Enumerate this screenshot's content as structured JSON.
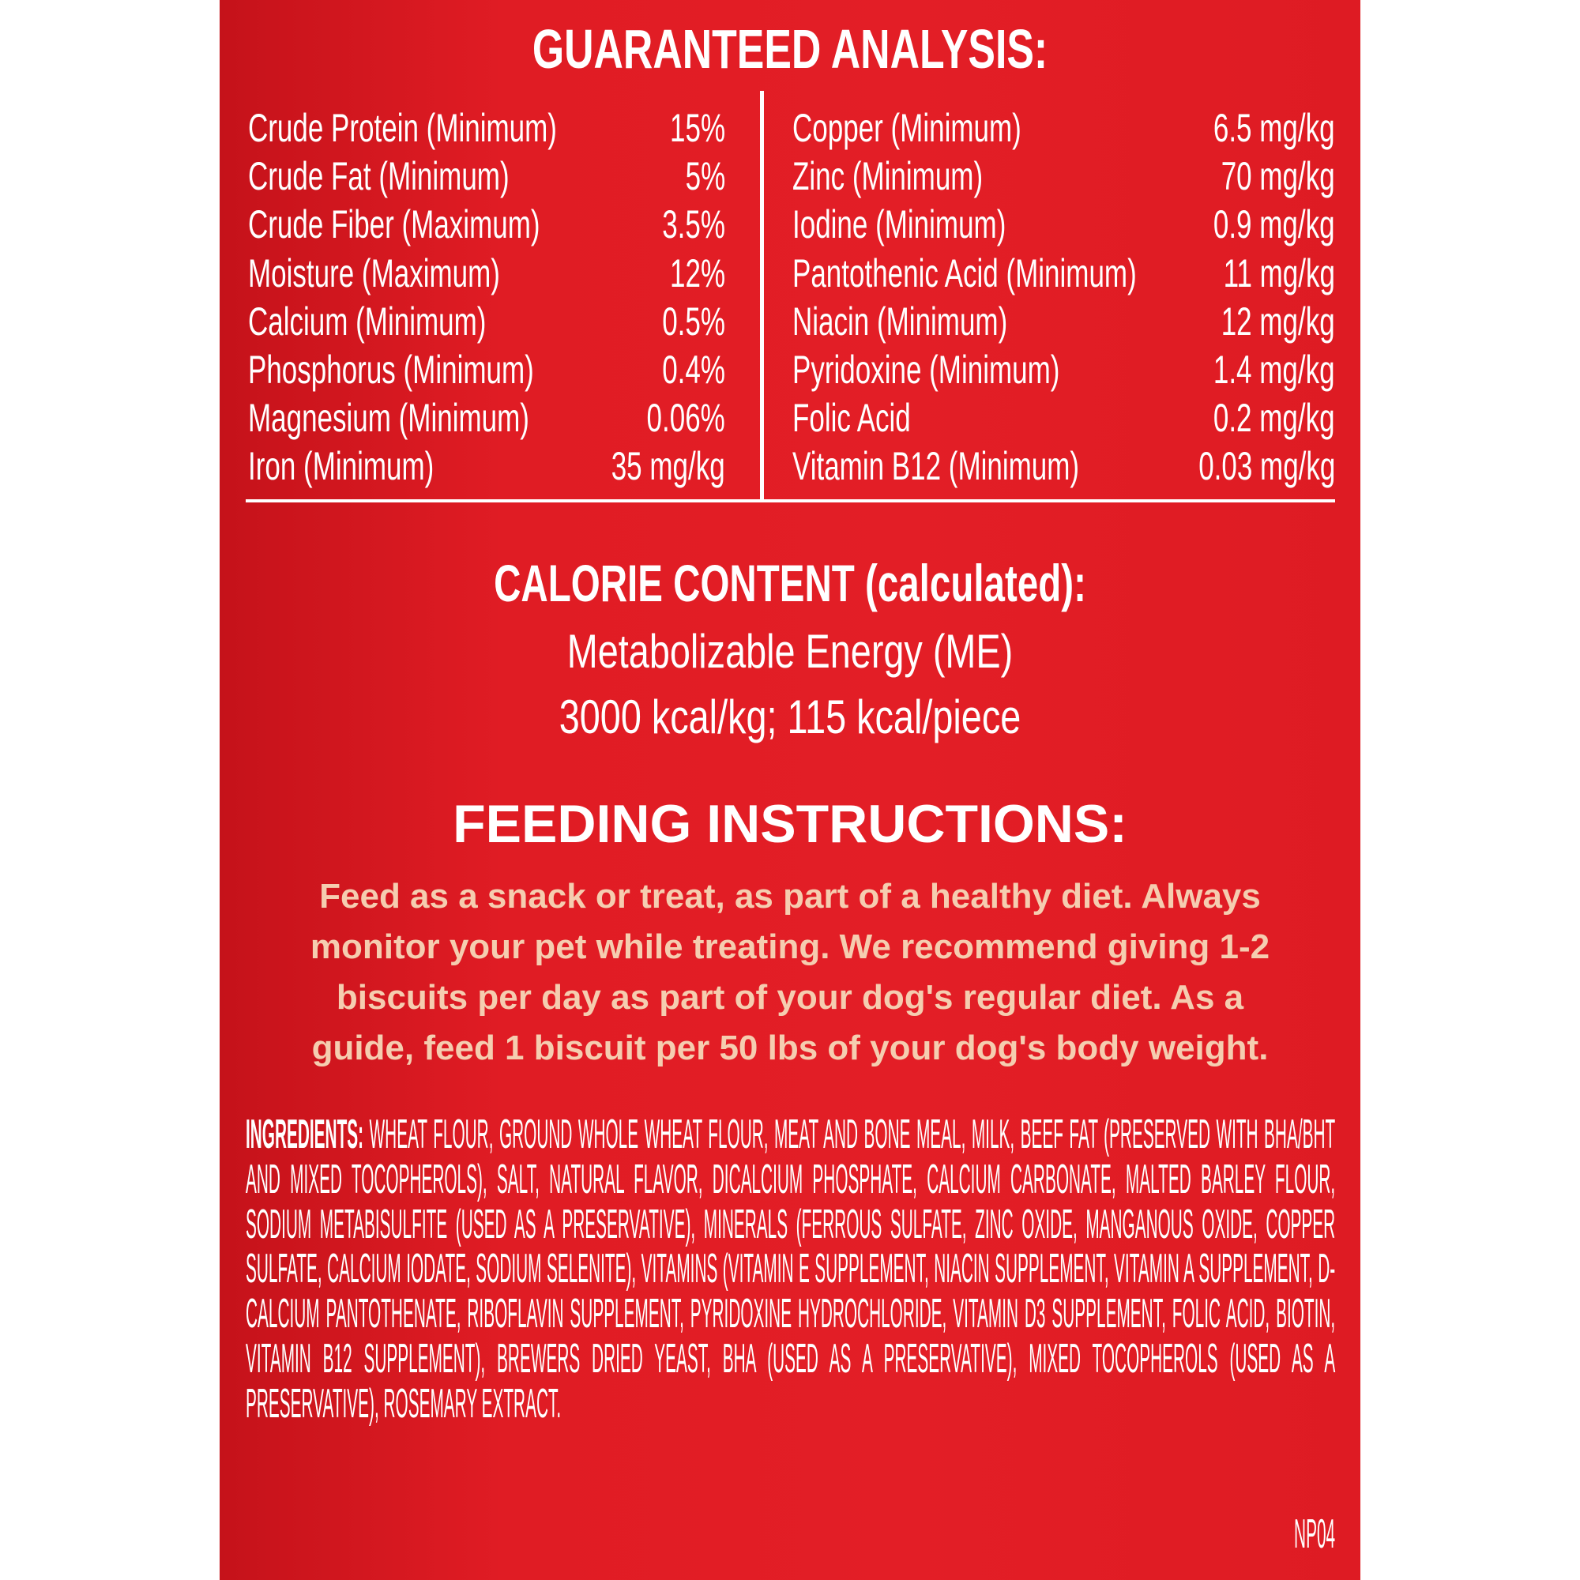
{
  "analysis": {
    "title": "GUARANTEED ANALYSIS:",
    "left": [
      [
        "Crude Protein (Minimum)",
        "15%"
      ],
      [
        "Crude Fat (Minimum)",
        "5%"
      ],
      [
        "Crude Fiber (Maximum)",
        "3.5%"
      ],
      [
        "Moisture (Maximum)",
        "12%"
      ],
      [
        "Calcium (Minimum)",
        "0.5%"
      ],
      [
        "Phosphorus (Minimum)",
        "0.4%"
      ],
      [
        "Magnesium (Minimum)",
        "0.06%"
      ],
      [
        "Iron (Minimum)",
        "35 mg/kg"
      ]
    ],
    "right": [
      [
        "Copper (Minimum)",
        "6.5 mg/kg"
      ],
      [
        "Zinc (Minimum)",
        "70 mg/kg"
      ],
      [
        "Iodine (Minimum)",
        "0.9 mg/kg"
      ],
      [
        "Pantothenic Acid (Minimum)",
        "11 mg/kg"
      ],
      [
        "Niacin (Minimum)",
        "12 mg/kg"
      ],
      [
        "Pyridoxine (Minimum)",
        "1.4 mg/kg"
      ],
      [
        "Folic Acid",
        "0.2 mg/kg"
      ],
      [
        "Vitamin B12 (Minimum)",
        "0.03 mg/kg"
      ]
    ]
  },
  "calorie": {
    "title": "CALORIE CONTENT (calculated):",
    "lines": [
      "Metabolizable Energy (ME)",
      "3000 kcal/kg; 115 kcal/piece"
    ]
  },
  "feeding": {
    "title": "FEEDING INSTRUCTIONS:",
    "lines": [
      "Feed as a snack or treat, as part of a healthy diet. Always",
      "monitor your pet while treating. We recommend giving 1-2",
      "biscuits per day as part of your dog's regular diet. As a",
      "guide, feed 1 biscuit per 50 lbs of your dog's body weight."
    ]
  },
  "ingredients": {
    "label": "INGREDIENTS:",
    "text": "WHEAT FLOUR, GROUND WHOLE WHEAT FLOUR, MEAT AND BONE MEAL, MILK, BEEF FAT (PRESERVED WITH BHA/BHT AND MIXED TOCOPHEROLS), SALT, NATURAL FLAVOR, DICALCIUM PHOSPHATE, CALCIUM CARBONATE, MALTED BARLEY FLOUR, SODIUM METABISULFITE (USED AS A PRESERVATIVE), MINERALS (FERROUS SULFATE, ZINC OXIDE, MANGANOUS OXIDE, COPPER SULFATE, CALCIUM IODATE, SODIUM SELENITE), VITAMINS (VITAMIN E SUPPLEMENT, NIACIN SUPPLEMENT, VITAMIN A SUPPLEMENT, D-CALCIUM PANTOTHENATE, RIBOFLAVIN SUPPLEMENT, PYRIDOXINE HYDROCHLORIDE, VITAMIN D3 SUPPLEMENT, FOLIC ACID, BIOTIN, VITAMIN B12 SUPPLEMENT), BREWERS DRIED YEAST, BHA (USED AS A PRESERVATIVE), MIXED TOCOPHEROLS (USED AS A PRESERVATIVE), ROSEMARY EXTRACT.",
    "code": "NP04"
  }
}
